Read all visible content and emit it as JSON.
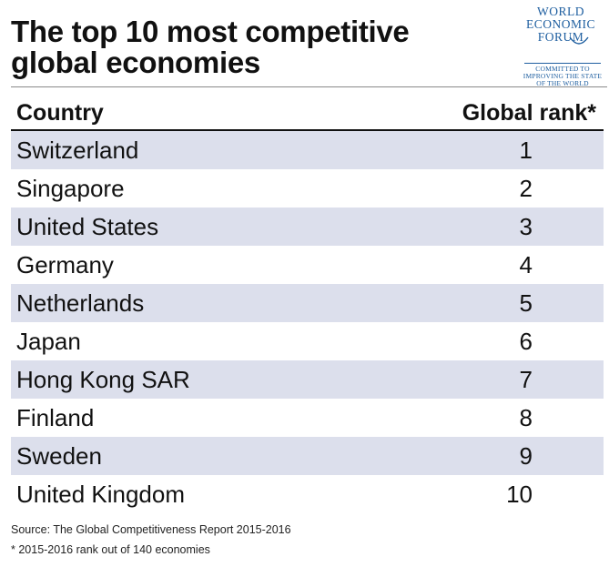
{
  "title_lines": [
    "The top 10 most competitive",
    "global economies"
  ],
  "logo": {
    "words": [
      "WORLD",
      "ECONOMIC",
      "FORUM"
    ],
    "tagline": [
      "COMMITTED TO",
      "IMPROVING THE STATE",
      "OF THE WORLD"
    ]
  },
  "colors": {
    "shaded_row": "#dcdfec",
    "logo_blue": "#1f5fa0",
    "text": "#111111"
  },
  "chart_data": {
    "type": "table",
    "title": "The top 10 most competitive global economies",
    "columns": [
      "Country",
      "Global rank*"
    ],
    "rows": [
      {
        "country": "Switzerland",
        "rank": "1"
      },
      {
        "country": "Singapore",
        "rank": "2"
      },
      {
        "country": "United States",
        "rank": "3"
      },
      {
        "country": "Germany",
        "rank": "4"
      },
      {
        "country": "Netherlands",
        "rank": "5"
      },
      {
        "country": "Japan",
        "rank": "6"
      },
      {
        "country": "Hong Kong SAR",
        "rank": "7"
      },
      {
        "country": "Finland",
        "rank": "8"
      },
      {
        "country": "Sweden",
        "rank": "9"
      },
      {
        "country": "United Kingdom",
        "rank": "10"
      }
    ],
    "shaded_rows": "alternating, starting with first row"
  },
  "source": "Source: The Global Competitiveness Report 2015-2016",
  "footnote": "* 2015-2016 rank out of 140 economies"
}
